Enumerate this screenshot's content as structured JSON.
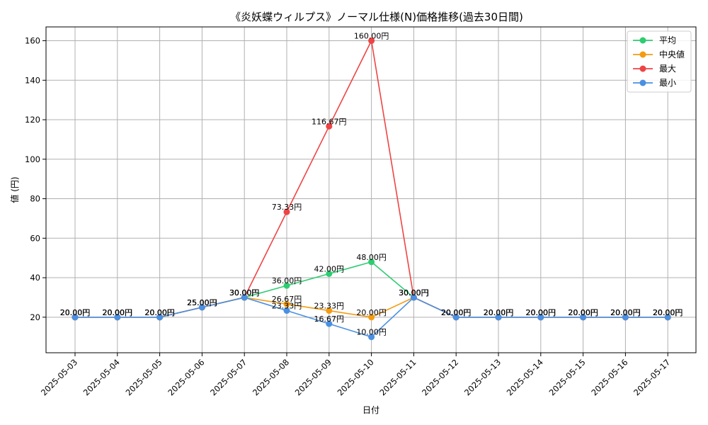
{
  "chart_data": {
    "type": "line",
    "title": "《炎妖蝶ウィルプス》ノーマル仕様(N)価格推移(過去30日間)",
    "xlabel": "日付",
    "ylabel": "値 (円)",
    "categories": [
      "2025-05-03",
      "2025-05-04",
      "2025-05-05",
      "2025-05-06",
      "2025-05-07",
      "2025-05-08",
      "2025-05-09",
      "2025-05-10",
      "2025-05-11",
      "2025-05-12",
      "2025-05-13",
      "2025-05-14",
      "2025-05-15",
      "2025-05-16",
      "2025-05-17"
    ],
    "ylim": [
      2,
      167
    ],
    "yticks": [
      20,
      40,
      60,
      80,
      100,
      120,
      140,
      160
    ],
    "grid": true,
    "legend_position": "top-right",
    "series": [
      {
        "name": "平均",
        "color": "#2ecc71",
        "values": [
          20,
          20,
          20,
          25,
          30,
          36,
          42,
          48,
          30,
          20,
          20,
          20,
          20,
          20,
          20
        ]
      },
      {
        "name": "中央値",
        "color": "#f39c12",
        "values": [
          20,
          20,
          20,
          25,
          30,
          26.67,
          23.33,
          20,
          30,
          20,
          20,
          20,
          20,
          20,
          20
        ]
      },
      {
        "name": "最大",
        "color": "#ef4444",
        "values": [
          20,
          20,
          20,
          25,
          30,
          73.33,
          116.67,
          160,
          30,
          20,
          20,
          20,
          20,
          20,
          20
        ]
      },
      {
        "name": "最小",
        "color": "#4a90e2",
        "values": [
          20,
          20,
          20,
          25,
          30,
          23.33,
          16.67,
          10,
          30,
          20,
          20,
          20,
          20,
          20,
          20
        ]
      }
    ],
    "data_labels": {
      "suffix": "円",
      "decimals": 2,
      "series": [
        [
          "20.00",
          "20.00",
          "20.00",
          "25.00",
          "30.00",
          "36.00",
          "42.00",
          "48.00",
          "30.00",
          "20.00",
          "20.00",
          "20.00",
          "20.00",
          "20.00",
          "20.00"
        ],
        [
          "20.00",
          "20.00",
          "20.00",
          "25.00",
          "30.00",
          "26.67",
          "23.33",
          "20.00",
          "30.00",
          "20.00",
          "20.00",
          "20.00",
          "20.00",
          "20.00",
          "20.00"
        ],
        [
          "20.00",
          "20.00",
          "20.00",
          "25.00",
          "30.00",
          "73.33",
          "116.67",
          "160.00",
          "30.00",
          "20.00",
          "20.00",
          "20.00",
          "20.00",
          "20.00",
          "20.00"
        ],
        [
          "20.00",
          "20.00",
          "20.00",
          "25.00",
          "30.00",
          "23.33",
          "16.67",
          "10.00",
          "30.00",
          "20.00",
          "20.00",
          "20.00",
          "20.00",
          "20.00",
          "20.00"
        ]
      ]
    }
  }
}
